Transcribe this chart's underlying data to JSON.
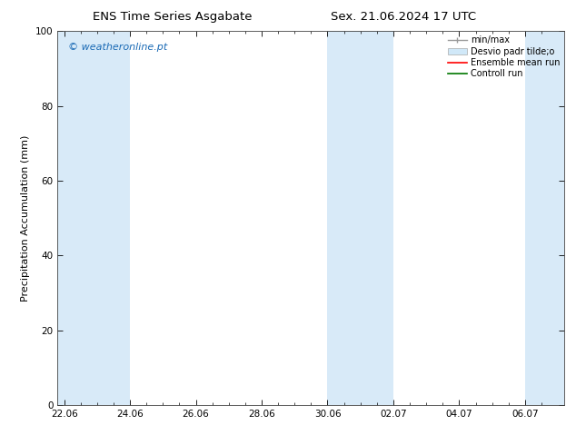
{
  "title_left": "ENS Time Series Asgabate",
  "title_right": "Sex. 21.06.2024 17 UTC",
  "ylabel": "Precipitation Accumulation (mm)",
  "ylim": [
    0,
    100
  ],
  "yticks": [
    0,
    20,
    40,
    60,
    80,
    100
  ],
  "background_color": "#ffffff",
  "plot_bg_color": "#ffffff",
  "watermark": "© weatheronline.pt",
  "watermark_color": "#1a6ab5",
  "shaded_bands_color": "#d8eaf8",
  "x_ticks_labels": [
    "22.06",
    "24.06",
    "26.06",
    "28.06",
    "30.06",
    "02.07",
    "04.07",
    "06.07"
  ],
  "x_ticks_values": [
    0,
    2,
    4,
    6,
    8,
    10,
    12,
    14
  ],
  "xlim_min": -0.2,
  "xlim_max": 15.2,
  "shaded_bands": [
    {
      "x_start": -0.2,
      "x_end": 2.0
    },
    {
      "x_start": 8.0,
      "x_end": 10.0
    },
    {
      "x_start": 14.0,
      "x_end": 15.2
    }
  ],
  "legend_entries": [
    {
      "label": "min/max",
      "color": "#999999",
      "type": "errorbar"
    },
    {
      "label": "Desvio padr tilde;o",
      "color": "#d0e8f8",
      "type": "bar"
    },
    {
      "label": "Ensemble mean run",
      "color": "#ff0000",
      "type": "line"
    },
    {
      "label": "Controll run",
      "color": "#007700",
      "type": "line"
    }
  ],
  "title_fontsize": 9.5,
  "axis_label_fontsize": 8,
  "tick_fontsize": 7.5,
  "watermark_fontsize": 8,
  "legend_fontsize": 7
}
